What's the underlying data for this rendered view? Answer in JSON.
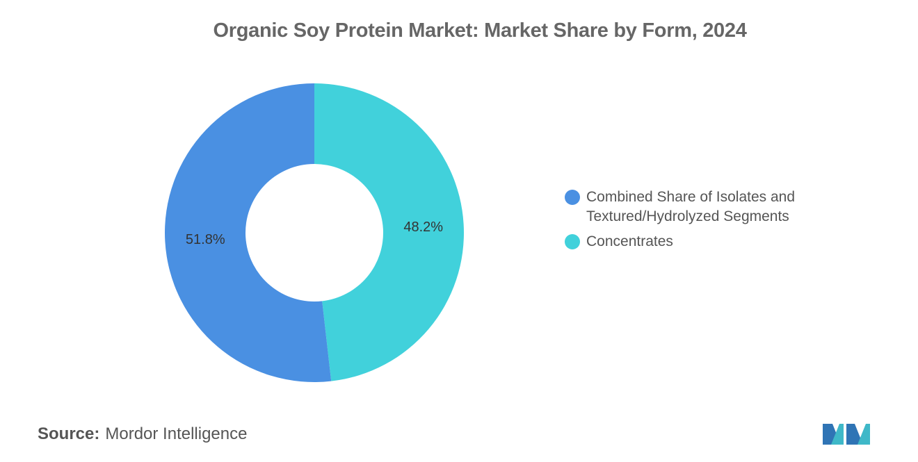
{
  "title": "Organic Soy Protein Market: Market Share by Form, 2024",
  "chart_data": {
    "type": "pie",
    "variant": "donut",
    "categories": [
      "Combined Share of Isolates and Textured/Hydrolyzed Segments",
      "Concentrates"
    ],
    "values": [
      51.8,
      48.2
    ],
    "data_labels": [
      "51.8%",
      "48.2%"
    ],
    "colors": [
      "#4A90E2",
      "#41D1DB"
    ],
    "legend_placement": "right"
  },
  "legend": {
    "items": [
      {
        "label": "Combined Share of Isolates and Textured/Hydrolyzed Segments",
        "color": "#4A90E2"
      },
      {
        "label": "Concentrates",
        "color": "#41D1DB"
      }
    ]
  },
  "footer": {
    "source_label": "Source:",
    "source_value": "Mordor Intelligence",
    "logo_icon": "mordor-intelligence-logo-icon"
  }
}
